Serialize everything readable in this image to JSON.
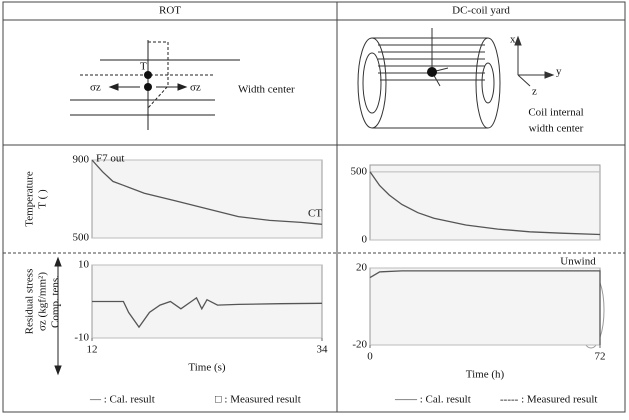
{
  "header": [
    "ROT",
    "DC-coil yard"
  ],
  "diagram": {
    "left": {
      "point_label": "T",
      "stress_left": "σz",
      "stress_right": "σz",
      "caption": "Width center"
    },
    "right": {
      "axis_x": "x",
      "axis_y": "y",
      "axis_z": "z",
      "caption": [
        "Coil internal",
        "width center"
      ]
    }
  },
  "legend": [
    [
      "— : Cal. result",
      "□ : Measured result"
    ],
    [
      "—— : Cal. result",
      "----- : Measured result"
    ]
  ],
  "chart_data": [
    {
      "type": "line",
      "ylabel": [
        "Temperature",
        "T (  )"
      ],
      "annotations": [
        "F7 out",
        "CT"
      ],
      "x": [
        12,
        13,
        14,
        15,
        17,
        20,
        23,
        26,
        29,
        32,
        34
      ],
      "values": [
        900,
        840,
        790,
        770,
        730,
        690,
        650,
        610,
        590,
        580,
        570
      ],
      "color": "#555555",
      "xlim": [
        12,
        34
      ],
      "ylim": [
        500,
        900
      ],
      "yticks": [
        500,
        900
      ],
      "grid": true
    },
    {
      "type": "line",
      "ylabel": [],
      "x": [
        0,
        3,
        6,
        10,
        15,
        20,
        30,
        40,
        50,
        60,
        72
      ],
      "values": [
        500,
        400,
        330,
        260,
        200,
        160,
        110,
        80,
        60,
        50,
        40
      ],
      "color": "#555555",
      "xlim": [
        0,
        72
      ],
      "ylim": [
        0,
        550
      ],
      "yticks": [
        0,
        500
      ],
      "grid": true
    },
    {
      "type": "line",
      "ylabel": [
        "Residual stress",
        "σz (kgf/mm²)",
        "Comp. tens."
      ],
      "xlabel": "Time (s)",
      "x": [
        12,
        15,
        15.5,
        16.5,
        17.5,
        18.5,
        19.5,
        20.5,
        21.5,
        22,
        22.5,
        23,
        24,
        26,
        30,
        34
      ],
      "values": [
        0,
        0,
        -3,
        -7,
        -3,
        -1,
        0,
        -2,
        0,
        1,
        -2,
        0.5,
        -1,
        -0.8,
        -0.6,
        -0.5
      ],
      "color": "#555555",
      "xlim": [
        12,
        34
      ],
      "xticks": [
        12,
        34
      ],
      "ylim": [
        -10,
        10
      ],
      "yticks": [
        -10,
        10
      ],
      "grid": true
    },
    {
      "type": "line",
      "ylabel": [],
      "xlabel": "Time (h)",
      "annotations": [
        "Unwind"
      ],
      "x": [
        0,
        1,
        3,
        10,
        30,
        50,
        70,
        72,
        72
      ],
      "values": [
        15,
        16,
        18,
        18.5,
        18.5,
        18.5,
        18.5,
        18.5,
        -20
      ],
      "color": "#555555",
      "xlim": [
        0,
        72
      ],
      "xticks": [
        0,
        72
      ],
      "ylim": [
        -20,
        20
      ],
      "yticks": [
        -20,
        20
      ],
      "grid": true
    }
  ]
}
